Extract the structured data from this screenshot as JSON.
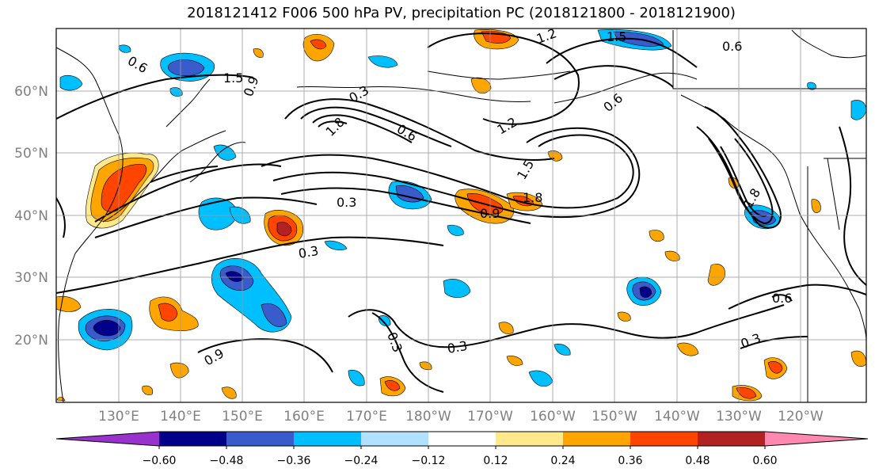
{
  "title": "2018121412 F006 500 hPa PV, precipitation PC (2018121800 - 2018121900)",
  "lat_labels": [
    "60°N",
    "50°N",
    "40°N",
    "30°N",
    "20°N"
  ],
  "lon_labels": [
    "130°E",
    "140°E",
    "150°E",
    "160°E",
    "170°E",
    "180°W",
    "170°W",
    "160°W",
    "150°W",
    "140°W",
    "130°W",
    "120°W"
  ],
  "contour_labels": [
    "0.6",
    "1.5",
    "0.9",
    "0.3",
    "1.8",
    "1.2",
    "0.6",
    "1.5",
    "1.8",
    "0.9",
    "0.3",
    "0.3",
    "0.3",
    "0.3",
    "0.3",
    "0.6",
    "0.6",
    "1.2",
    "1.5",
    "0.6",
    "0.9",
    "1.8"
  ],
  "colorbar": {
    "tick_labels": [
      "−0.60",
      "−0.48",
      "−0.36",
      "−0.24",
      "−0.12",
      "0.12",
      "0.24",
      "0.36",
      "0.48",
      "0.60"
    ],
    "colors": [
      "#9932cc",
      "#00008b",
      "#3a5bcc",
      "#00bfff",
      "#b0e2ff",
      "#ffffff",
      "#ffe98a",
      "#ffa500",
      "#ff4500",
      "#b22222",
      "#ff88b0"
    ]
  }
}
